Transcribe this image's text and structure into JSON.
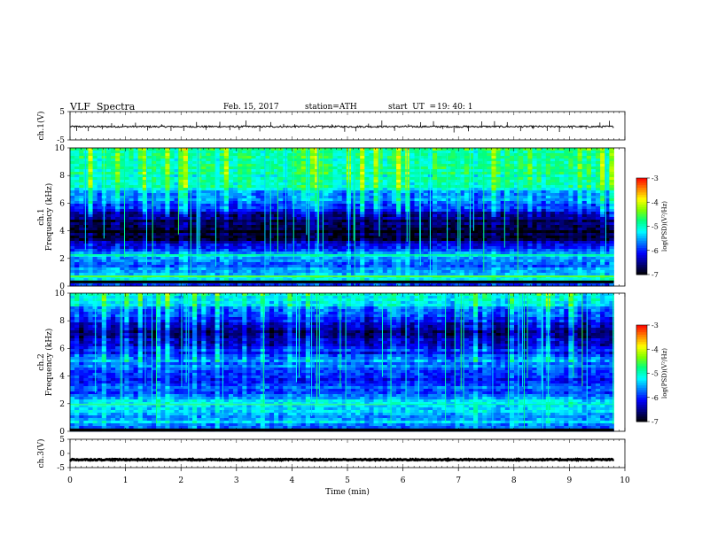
{
  "header": {
    "title": "VLF  Spectra",
    "date": "Feb. 15, 2017",
    "station": "station=ATH",
    "start_label": "start  UT  =",
    "start_time": "19: 40: 1"
  },
  "chart_data": [
    {
      "type": "line",
      "panel": "ch1-waveform",
      "ylabel": "ch.1(V)",
      "ylim": [
        -5,
        5
      ],
      "yticks": [
        "5",
        "-5"
      ],
      "xlim": [
        0,
        10
      ],
      "baseline": -0.3,
      "noise": 0.3,
      "color": "#000000",
      "spikes": [
        0.12,
        0.33,
        0.58,
        0.75,
        0.95,
        1.18,
        1.4,
        1.65,
        1.82,
        2.05,
        2.28,
        2.45,
        2.7,
        2.88,
        3.05,
        3.17,
        3.42,
        3.62,
        3.85,
        4.05,
        4.3,
        4.55,
        4.72,
        4.95,
        5.15,
        5.38,
        5.62,
        5.85,
        6.1,
        6.32,
        6.55,
        6.72,
        6.92,
        7.18,
        7.42,
        7.65,
        7.88,
        8.12,
        8.35,
        8.6,
        8.82,
        9.05,
        9.3,
        9.55,
        9.72
      ]
    },
    {
      "type": "heatmap",
      "panel": "ch1-spectrogram",
      "ylabel": "ch.1\nFrequency (kHz)",
      "ylim": [
        0,
        10
      ],
      "xlim": [
        0,
        9.8
      ],
      "yticks": [
        "0",
        "2",
        "4",
        "6",
        "8",
        "10"
      ],
      "colorbar": {
        "label": "log(PSD)(V²/Hz)",
        "range": [
          -7,
          -3
        ],
        "ticks": [
          "-3",
          "-4",
          "-5",
          "-6",
          "-7"
        ]
      },
      "profile_khz": [
        0,
        0.4,
        0.8,
        1.2,
        1.6,
        2.0,
        2.4,
        3.0,
        3.5,
        4.0,
        4.5,
        5.0,
        5.5,
        6.0,
        6.5,
        7.0,
        7.5,
        8.0,
        8.5,
        9.0,
        9.5,
        10.0
      ],
      "profile_logpsd": [
        -6.0,
        -5.3,
        -5.2,
        -5.6,
        -5.7,
        -5.4,
        -5.5,
        -6.4,
        -6.8,
        -6.9,
        -6.8,
        -6.6,
        -6.1,
        -5.8,
        -5.7,
        -5.2,
        -5.0,
        -4.9,
        -4.8,
        -4.8,
        -4.8,
        -4.7
      ],
      "bands": [
        {
          "khz": 0.3,
          "logpsd": -7.0,
          "width_khz": 0.2
        },
        {
          "khz": 0.7,
          "logpsd": -4.4,
          "width_khz": 0.1
        },
        {
          "khz": 2.25,
          "logpsd": -4.8,
          "width_khz": 0.08
        }
      ]
    },
    {
      "type": "heatmap",
      "panel": "ch2-spectrogram",
      "ylabel": "ch.2\nFrequency (kHz)",
      "ylim": [
        0,
        10
      ],
      "xlim": [
        0,
        9.8
      ],
      "yticks": [
        "0",
        "2",
        "4",
        "6",
        "8",
        "10"
      ],
      "colorbar": {
        "label": "log(PSD)(V²/Hz)",
        "range": [
          -7,
          -3
        ],
        "ticks": [
          "-3",
          "-4",
          "-5",
          "-6",
          "-7"
        ]
      },
      "profile_khz": [
        0,
        0.4,
        0.8,
        1.2,
        1.6,
        2.0,
        2.4,
        3.0,
        3.5,
        4.0,
        4.5,
        5.0,
        5.5,
        6.0,
        6.5,
        7.0,
        7.5,
        8.0,
        8.5,
        9.0,
        9.5,
        10.0
      ],
      "profile_logpsd": [
        -6.2,
        -5.6,
        -5.4,
        -5.5,
        -5.5,
        -5.3,
        -5.7,
        -5.8,
        -6.0,
        -6.1,
        -5.8,
        -5.6,
        -6.0,
        -6.1,
        -6.3,
        -6.6,
        -6.4,
        -6.0,
        -5.7,
        -5.5,
        -5.3,
        -5.2
      ],
      "bands": [
        {
          "khz": 0.1,
          "logpsd": -7.0,
          "width_khz": 0.2
        },
        {
          "khz": 1.95,
          "logpsd": -3.9,
          "width_khz": 0.08,
          "x_end": 5.7
        },
        {
          "khz": 1.95,
          "logpsd": -4.9,
          "width_khz": 0.06
        }
      ]
    },
    {
      "type": "line",
      "panel": "ch3-waveform",
      "ylabel": "ch.3(V)",
      "ylim": [
        -5,
        5
      ],
      "yticks": [
        "5",
        "0",
        "-5"
      ],
      "xlim": [
        0,
        10
      ],
      "baseline": -2.2,
      "noise": 0.2,
      "color": "#000000",
      "spikes": []
    }
  ],
  "time_axis": {
    "xlabel": "Time  (min)",
    "xlim": [
      0,
      10
    ],
    "ticks": [
      "0",
      "1",
      "2",
      "3",
      "4",
      "5",
      "6",
      "7",
      "8",
      "9",
      "10"
    ]
  },
  "colormap": [
    "#000000",
    "#000080",
    "#0000ff",
    "#0080ff",
    "#00ffff",
    "#00ff80",
    "#80ff00",
    "#ffff00",
    "#ff8000",
    "#ff0000",
    "#ffffff"
  ]
}
